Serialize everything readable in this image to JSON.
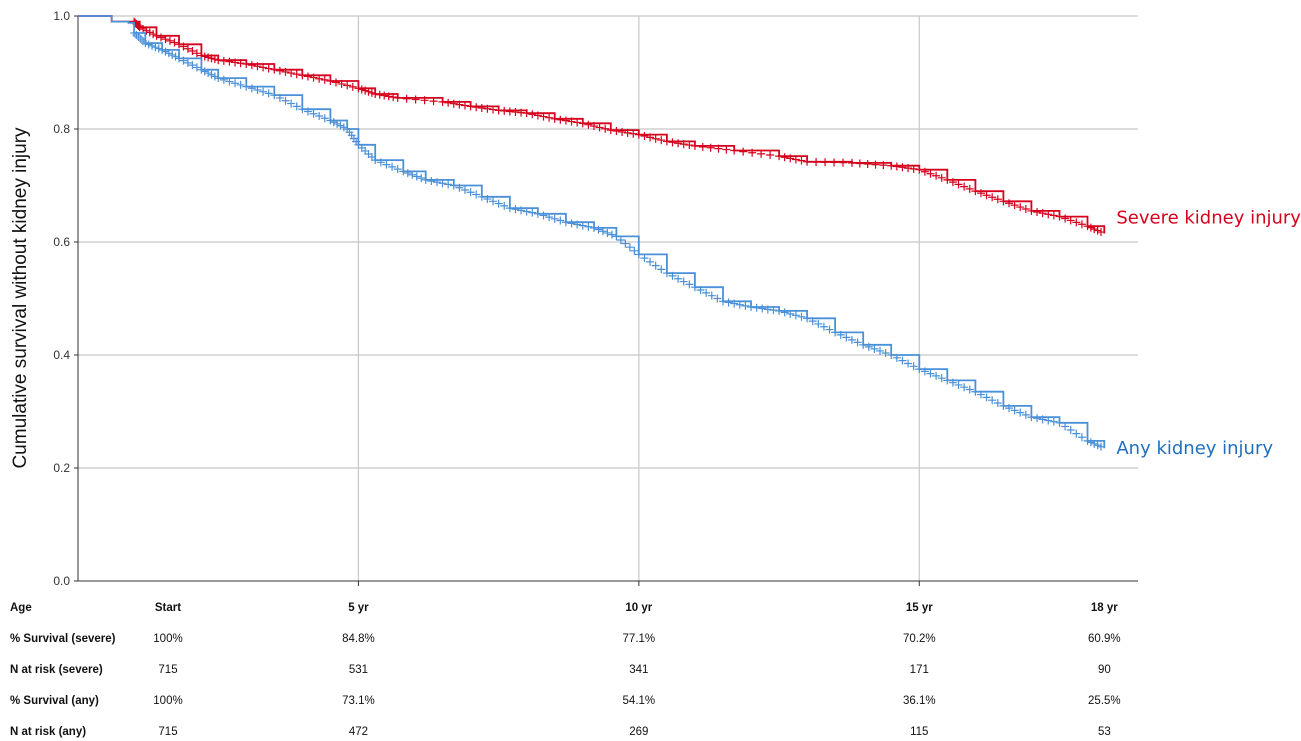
{
  "colors": {
    "severe": "#d6001c",
    "any": "#4a90d9",
    "any_label": "#1f6fc0",
    "grid": "#c8c8c8",
    "axis": "#333333"
  },
  "chart_data": {
    "type": "line",
    "ylabel": "Cumulative survival without kidney injury",
    "xlabel": "",
    "xlim": [
      0,
      18.9
    ],
    "ylim": [
      0,
      1.0
    ],
    "yticks": [
      "0.0",
      "0.2",
      "0.4",
      "0.6",
      "0.8",
      "1.0"
    ],
    "xgrid": [
      5,
      10,
      15
    ],
    "grid": true,
    "series": [
      {
        "key": "severe",
        "name": "Severe kidney injury",
        "points": [
          [
            0,
            1.0
          ],
          [
            0.6,
            0.99
          ],
          [
            1.0,
            0.99
          ],
          [
            1.1,
            0.98
          ],
          [
            1.4,
            0.965
          ],
          [
            1.8,
            0.95
          ],
          [
            2.2,
            0.93
          ],
          [
            2.5,
            0.922
          ],
          [
            3.0,
            0.915
          ],
          [
            3.5,
            0.905
          ],
          [
            4.0,
            0.895
          ],
          [
            4.5,
            0.885
          ],
          [
            5.0,
            0.872
          ],
          [
            5.3,
            0.862
          ],
          [
            5.7,
            0.855
          ],
          [
            6.5,
            0.848
          ],
          [
            7.0,
            0.84
          ],
          [
            7.5,
            0.833
          ],
          [
            8.0,
            0.828
          ],
          [
            8.5,
            0.818
          ],
          [
            9.0,
            0.81
          ],
          [
            9.5,
            0.798
          ],
          [
            10.0,
            0.79
          ],
          [
            10.5,
            0.778
          ],
          [
            11.0,
            0.77
          ],
          [
            11.7,
            0.762
          ],
          [
            12.5,
            0.752
          ],
          [
            13.0,
            0.742
          ],
          [
            13.8,
            0.74
          ],
          [
            14.5,
            0.735
          ],
          [
            15.0,
            0.728
          ],
          [
            15.5,
            0.71
          ],
          [
            16.0,
            0.69
          ],
          [
            16.5,
            0.672
          ],
          [
            17.0,
            0.655
          ],
          [
            17.5,
            0.645
          ],
          [
            18.0,
            0.628
          ],
          [
            18.3,
            0.615
          ]
        ]
      },
      {
        "key": "any",
        "name": "Any kidney injury",
        "points": [
          [
            0,
            1.0
          ],
          [
            0.6,
            0.99
          ],
          [
            0.9,
            0.988
          ],
          [
            1.0,
            0.97
          ],
          [
            1.2,
            0.952
          ],
          [
            1.5,
            0.94
          ],
          [
            1.8,
            0.925
          ],
          [
            2.2,
            0.905
          ],
          [
            2.5,
            0.89
          ],
          [
            3.0,
            0.875
          ],
          [
            3.5,
            0.86
          ],
          [
            4.0,
            0.835
          ],
          [
            4.5,
            0.815
          ],
          [
            4.8,
            0.8
          ],
          [
            5.0,
            0.772
          ],
          [
            5.3,
            0.745
          ],
          [
            5.8,
            0.725
          ],
          [
            6.2,
            0.71
          ],
          [
            6.7,
            0.7
          ],
          [
            7.2,
            0.68
          ],
          [
            7.7,
            0.66
          ],
          [
            8.2,
            0.65
          ],
          [
            8.7,
            0.635
          ],
          [
            9.2,
            0.625
          ],
          [
            9.6,
            0.61
          ],
          [
            10.0,
            0.578
          ],
          [
            10.5,
            0.545
          ],
          [
            11.0,
            0.52
          ],
          [
            11.5,
            0.495
          ],
          [
            12.0,
            0.485
          ],
          [
            12.5,
            0.478
          ],
          [
            13.0,
            0.465
          ],
          [
            13.5,
            0.44
          ],
          [
            14.0,
            0.418
          ],
          [
            14.5,
            0.4
          ],
          [
            15.0,
            0.375
          ],
          [
            15.5,
            0.355
          ],
          [
            16.0,
            0.335
          ],
          [
            16.5,
            0.31
          ],
          [
            17.0,
            0.29
          ],
          [
            17.5,
            0.28
          ],
          [
            18.0,
            0.248
          ],
          [
            18.3,
            0.235
          ]
        ]
      }
    ]
  },
  "risk_table": {
    "columns": [
      "Start",
      "5 yr",
      "10 yr",
      "15 yr",
      "18 yr"
    ],
    "column_x": [
      0,
      5,
      10,
      15,
      18.3
    ],
    "header_label": "Age",
    "rows": [
      {
        "label": "% Survival (severe)",
        "values": [
          "100%",
          "84.8%",
          "77.1%",
          "70.2%",
          "60.9%"
        ]
      },
      {
        "label": "N at risk (severe)",
        "values": [
          "715",
          "531",
          "341",
          "171",
          "90"
        ]
      },
      {
        "label": "% Survival (any)",
        "values": [
          "100%",
          "73.1%",
          "54.1%",
          "36.1%",
          "25.5%"
        ]
      },
      {
        "label": "N at risk (any)",
        "values": [
          "715",
          "472",
          "269",
          "115",
          "53"
        ]
      }
    ]
  }
}
